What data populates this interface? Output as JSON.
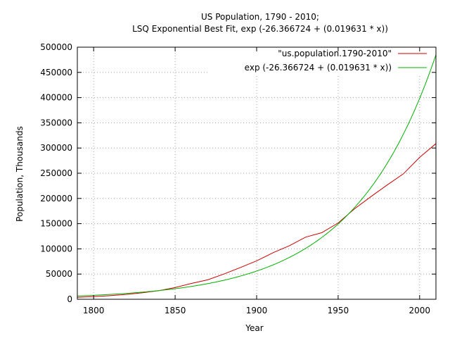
{
  "chart_data": {
    "type": "line",
    "title_lines": [
      "US Population, 1790 - 2010;",
      "LSQ Exponential Best Fit, exp (-26.366724 + (0.019631 * x))"
    ],
    "xlabel": "Year",
    "ylabel": "Population, Thousands",
    "xlim": [
      1790,
      2010
    ],
    "ylim": [
      0,
      500000
    ],
    "xticks": [
      1800,
      1850,
      1900,
      1950,
      2000
    ],
    "yticks": [
      0,
      50000,
      100000,
      150000,
      200000,
      250000,
      300000,
      350000,
      400000,
      450000,
      500000
    ],
    "grid": true,
    "legend_position": "top-right",
    "series": [
      {
        "name": "\"us.population.1790-2010\"",
        "color": "#cc0000",
        "x": [
          1790,
          1800,
          1810,
          1820,
          1830,
          1840,
          1850,
          1860,
          1870,
          1880,
          1890,
          1900,
          1910,
          1920,
          1930,
          1940,
          1950,
          1960,
          1970,
          1980,
          1990,
          2000,
          2010
        ],
        "y": [
          3929,
          5308,
          7240,
          9638,
          12866,
          17069,
          23192,
          31443,
          38558,
          50189,
          62980,
          76212,
          92228,
          106022,
          123203,
          132165,
          151326,
          179323,
          203302,
          226542,
          248710,
          281422,
          308746
        ]
      },
      {
        "name": "exp (-26.366724 + (0.019631 * x))",
        "color": "#00b000",
        "function": {
          "a": -26.366724,
          "b": 0.019631
        },
        "x": [
          1790,
          1800,
          1810,
          1820,
          1830,
          1840,
          1850,
          1860,
          1870,
          1880,
          1890,
          1900,
          1910,
          1920,
          1930,
          1940,
          1950,
          1960,
          1970,
          1980,
          1990,
          2000,
          2010
        ],
        "y": [
          6541,
          7954,
          9673,
          11764,
          14306,
          17398,
          21158,
          25731,
          31292,
          38055,
          46280,
          56282,
          68446,
          83239,
          101229,
          123108,
          149714,
          182071,
          221421,
          269276,
          327474,
          398248,
          484319
        ]
      }
    ]
  }
}
